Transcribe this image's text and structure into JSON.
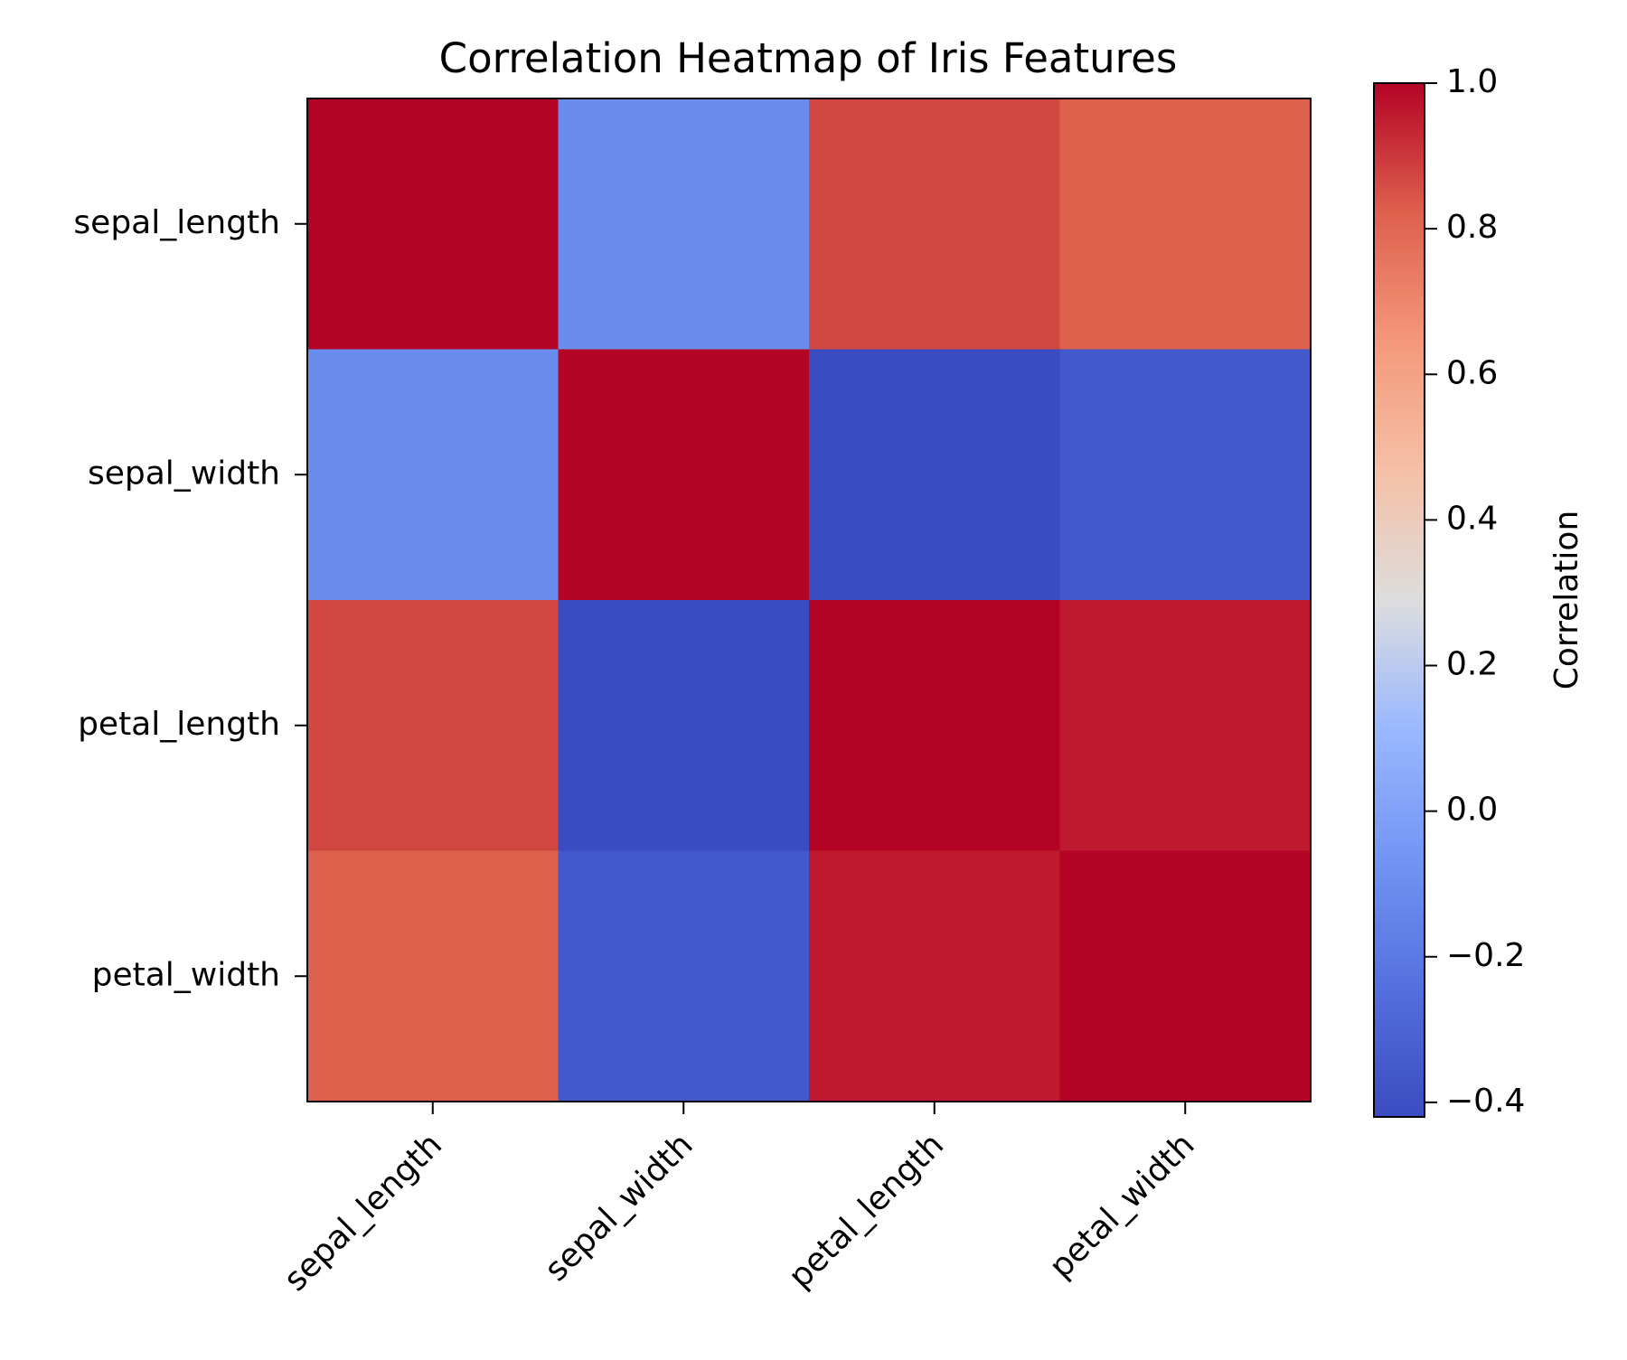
{
  "chart_data": {
    "type": "heatmap",
    "title": "Correlation Heatmap of Iris Features",
    "xlabel": "",
    "ylabel": "",
    "x_categories": [
      "sepal_length",
      "sepal_width",
      "petal_length",
      "petal_width"
    ],
    "y_categories": [
      "sepal_length",
      "sepal_width",
      "petal_length",
      "petal_width"
    ],
    "values": [
      [
        1.0,
        -0.11,
        0.87,
        0.82
      ],
      [
        -0.11,
        1.0,
        -0.42,
        -0.36
      ],
      [
        0.87,
        -0.42,
        1.0,
        0.96
      ],
      [
        0.82,
        -0.36,
        0.96,
        1.0
      ]
    ],
    "colormap": "coolwarm",
    "vmin": -0.42,
    "vmax": 1.0,
    "colorbar": {
      "label": "Correlation",
      "ticks": [
        1.0,
        0.8,
        0.6,
        0.4,
        0.2,
        0.0,
        -0.2,
        -0.4
      ],
      "tick_labels": [
        "1.0",
        "0.8",
        "0.6",
        "0.4",
        "0.2",
        "0.0",
        "−0.2",
        "−0.4"
      ]
    },
    "grid": false
  }
}
